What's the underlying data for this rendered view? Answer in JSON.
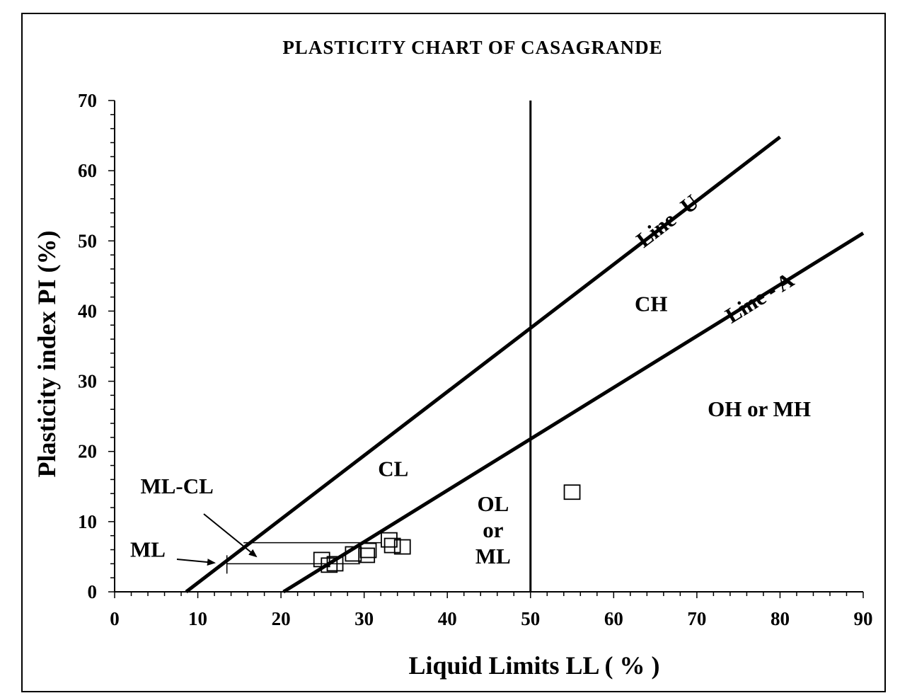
{
  "chart_data": {
    "type": "scatter",
    "title": "PLASTICITY  CHART  OF CASAGRANDE",
    "xlabel": "Liquid  Limits  LL ( % )",
    "ylabel": "Plasticity index PI  (%)",
    "xlim": [
      0,
      90
    ],
    "ylim": [
      0,
      70
    ],
    "x_ticks": [
      "0",
      "10",
      "20",
      "30",
      "40",
      "50",
      "60",
      "70",
      "80",
      "90"
    ],
    "y_ticks": [
      "0",
      "10",
      "20",
      "30",
      "40",
      "50",
      "60",
      "70"
    ],
    "grid": false,
    "reference_lines": [
      {
        "name": "Line- U",
        "label": "Line- U",
        "from": [
          8.6,
          0
        ],
        "to": [
          80,
          64.8
        ]
      },
      {
        "name": "Line - A",
        "label": "Line - A",
        "from": [
          20.3,
          0
        ],
        "to": [
          90,
          51.1
        ]
      },
      {
        "name": "LL = 50",
        "label": "",
        "from": [
          50,
          0
        ],
        "to": [
          50,
          70
        ]
      }
    ],
    "band_lines": [
      {
        "from": [
          13.5,
          4
        ],
        "to": [
          29.5,
          4
        ]
      },
      {
        "from": [
          15.5,
          7
        ],
        "to": [
          32,
          7
        ]
      }
    ],
    "region_labels": [
      {
        "text": "CL",
        "x": 33.5,
        "y": 16.5
      },
      {
        "text": "CH",
        "x": 64.5,
        "y": 40
      },
      {
        "text": "OH or MH",
        "x": 77.5,
        "y": 25
      },
      {
        "text": "OL",
        "lines": [
          "OL",
          "or",
          "ML"
        ],
        "x": 45.5,
        "y": 11.5
      },
      {
        "text": "ML-CL",
        "x": 7.5,
        "y": 14
      },
      {
        "text": "ML",
        "x": 4,
        "y": 5
      }
    ],
    "series": [
      {
        "points": [
          {
            "x": 24.9,
            "y": 4.6
          },
          {
            "x": 25.8,
            "y": 3.8
          },
          {
            "x": 26.5,
            "y": 4.0
          },
          {
            "x": 28.7,
            "y": 5.4
          },
          {
            "x": 30.3,
            "y": 5.2
          },
          {
            "x": 30.5,
            "y": 5.9
          },
          {
            "x": 33.0,
            "y": 7.4
          },
          {
            "x": 33.4,
            "y": 6.6
          },
          {
            "x": 34.6,
            "y": 6.4
          },
          {
            "x": 55.0,
            "y": 14.2
          }
        ]
      }
    ]
  }
}
